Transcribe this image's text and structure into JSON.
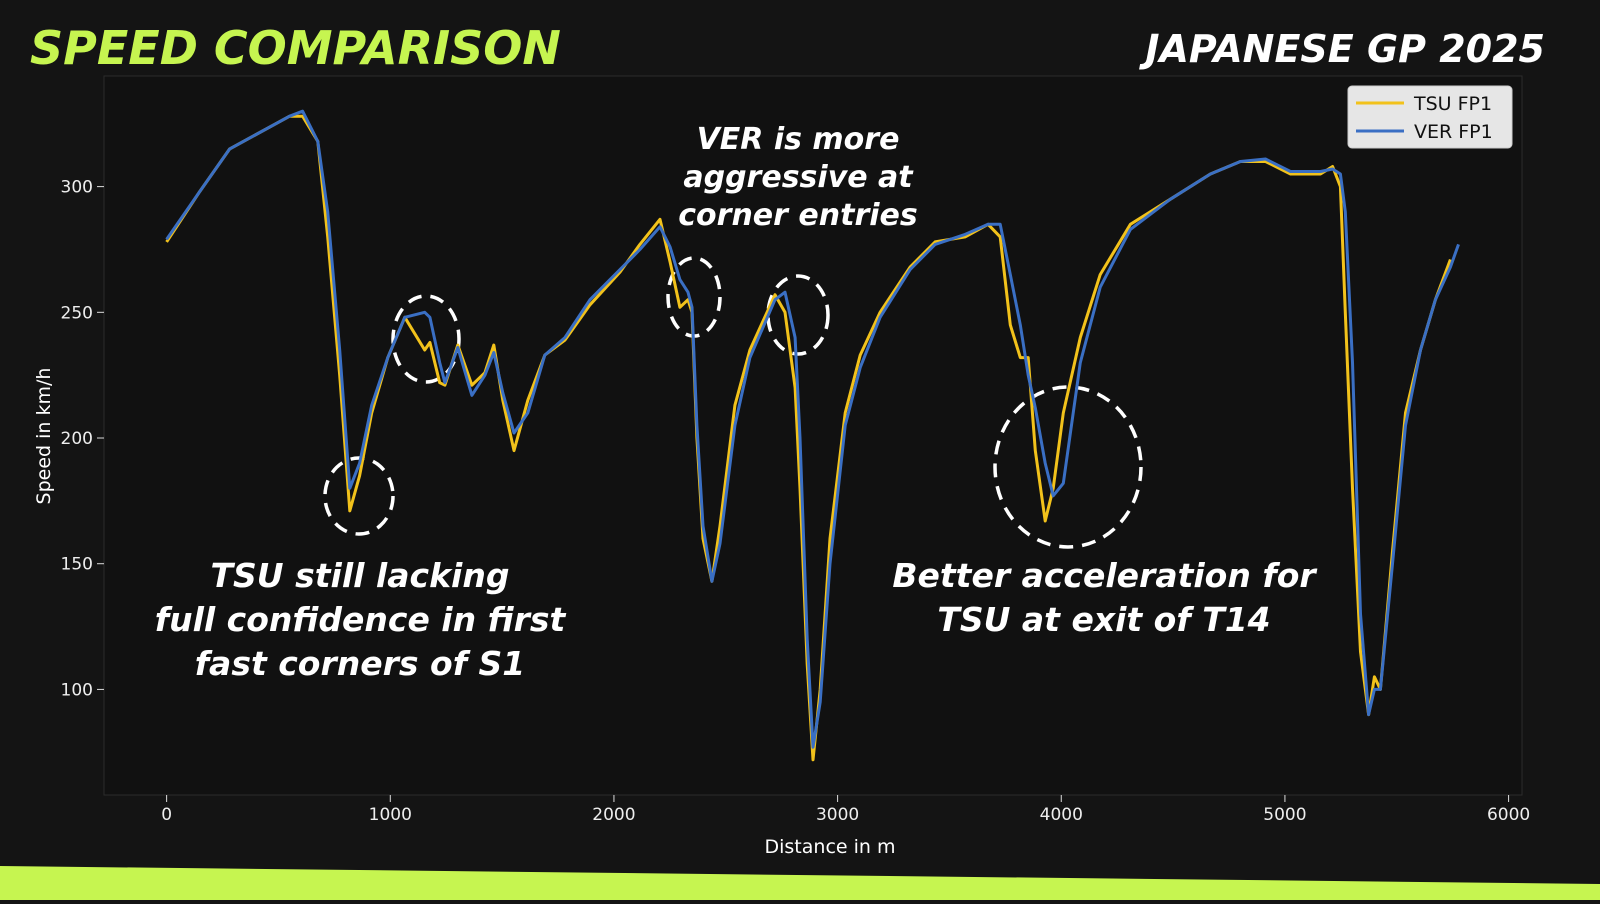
{
  "header": {
    "title": "SPEED COMPARISON",
    "subtitle": "JAPANESE GP 2025"
  },
  "chart_data": {
    "type": "line",
    "xlabel": "Distance in m",
    "ylabel": "Speed in km/h",
    "xlim": [
      -280,
      6060
    ],
    "ylim": [
      58,
      344
    ],
    "xticks": [
      0,
      1000,
      2000,
      3000,
      4000,
      5000,
      6000
    ],
    "yticks": [
      100,
      150,
      200,
      250,
      300
    ],
    "grid": false,
    "legend": "upper right",
    "x": [
      0,
      148,
      282,
      550,
      608,
      676,
      720,
      774,
      819,
      863,
      917,
      989,
      1065,
      1154,
      1177,
      1221,
      1244,
      1302,
      1365,
      1423,
      1463,
      1503,
      1553,
      1615,
      1691,
      1781,
      1893,
      2027,
      2116,
      2206,
      2251,
      2295,
      2331,
      2349,
      2371,
      2398,
      2438,
      2474,
      2541,
      2608,
      2720,
      2765,
      2810,
      2832,
      2864,
      2890,
      2922,
      2966,
      3034,
      3101,
      3190,
      3324,
      3436,
      3570,
      3673,
      3727,
      3772,
      3817,
      3852,
      3884,
      3928,
      3964,
      4009,
      4085,
      4174,
      4309,
      4488,
      4667,
      4801,
      4913,
      5025,
      5159,
      5213,
      5248,
      5270,
      5302,
      5338,
      5374,
      5400,
      5427,
      5481,
      5539,
      5606,
      5673,
      5740,
      5776
    ],
    "series": [
      {
        "name": "TSU FP1",
        "color": "#f2c21b",
        "values": [
          278,
          298,
          315,
          328,
          328,
          318,
          280,
          225,
          171,
          185,
          210,
          232,
          248,
          235,
          238,
          222,
          221,
          237,
          221,
          226,
          237,
          215,
          195,
          215,
          233,
          239,
          253,
          266,
          277,
          287,
          270,
          252,
          255,
          250,
          200,
          160,
          143,
          165,
          213,
          235,
          257,
          250,
          220,
          180,
          110,
          72,
          100,
          160,
          210,
          233,
          250,
          268,
          278,
          280,
          285,
          280,
          245,
          232,
          232,
          195,
          167,
          180,
          210,
          240,
          265,
          285,
          295,
          305,
          310,
          310,
          305,
          305,
          308,
          300,
          250,
          180,
          115,
          90,
          105,
          100,
          155,
          210,
          235,
          255,
          271,
          null
        ]
      },
      {
        "name": "VER FP1",
        "color": "#3a6fc4",
        "values": [
          279,
          298,
          315,
          328,
          330,
          318,
          290,
          235,
          180,
          190,
          213,
          232,
          248,
          250,
          248,
          230,
          222,
          236,
          217,
          225,
          234,
          218,
          202,
          210,
          233,
          240,
          255,
          267,
          275,
          284,
          276,
          263,
          258,
          252,
          205,
          165,
          143,
          158,
          205,
          232,
          255,
          258,
          240,
          200,
          120,
          77,
          95,
          150,
          205,
          228,
          248,
          267,
          277,
          281,
          285,
          285,
          265,
          245,
          225,
          212,
          190,
          177,
          182,
          230,
          260,
          283,
          295,
          305,
          310,
          311,
          306,
          306,
          307,
          305,
          290,
          230,
          130,
          90,
          100,
          100,
          150,
          205,
          235,
          255,
          268,
          277
        ]
      }
    ]
  },
  "annotations": [
    {
      "lines": [
        "TSU still lacking",
        "full confidence in first",
        "fast corners of S1"
      ]
    },
    {
      "lines": [
        "VER is more",
        "aggressive at",
        "corner entries"
      ]
    },
    {
      "lines": [
        "Better acceleration for",
        "TSU at exit of T14"
      ]
    }
  ]
}
